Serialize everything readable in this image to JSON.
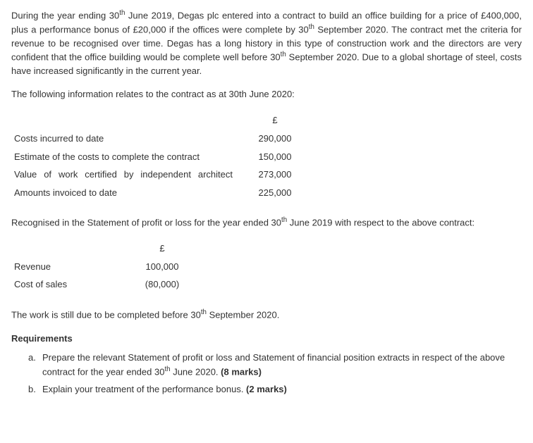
{
  "para1_pre": "During the year ending 30",
  "para1_sup1": "th",
  "para1_mid1": " June 2019, Degas plc entered into a contract to build an office building for a price of £400,000, plus a performance bonus of £20,000 if the offices were complete by 30",
  "para1_sup2": "th",
  "para1_mid2": " September 2020. The contract met the criteria for revenue to be recognised over time. Degas has a long history in this type of construction work and the directors are very confident that the office building would be complete well before 30",
  "para1_sup3": "th",
  "para1_end": " September 2020. Due to a global shortage of steel, costs have increased significantly in the current year.",
  "para2": "The following information relates to the contract as at 30th June 2020:",
  "table1": {
    "currency": "£",
    "rows": [
      {
        "label": "Costs incurred to date",
        "value": "290,000",
        "justify": false
      },
      {
        "label": "Estimate of the costs to complete the contract",
        "value": "150,000",
        "justify": false
      },
      {
        "label": "Value of work certified by independent architect",
        "value": "273,000",
        "justify": true
      },
      {
        "label": "Amounts invoiced to date",
        "value": "225,000",
        "justify": false
      }
    ]
  },
  "para3_pre": "Recognised in the Statement of profit or loss for the year ended 30",
  "para3_sup": "th",
  "para3_end": " June 2019 with respect to the above contract:",
  "table2": {
    "currency": "£",
    "rows": [
      {
        "label": "Revenue",
        "value": "100,000"
      },
      {
        "label": "Cost of sales",
        "value": "(80,000)"
      }
    ]
  },
  "para4_pre": "The work is still due to be completed before 30",
  "para4_sup": "th",
  "para4_end": " September 2020.",
  "reqs_heading": "Requirements",
  "reqs": [
    {
      "marker": "a.",
      "text_pre": "Prepare the relevant Statement of profit or loss and Statement of financial position extracts in respect of the above contract for the year ended 30",
      "text_sup": "th",
      "text_post": " June 2020. ",
      "marks": "(8 marks)"
    },
    {
      "marker": "b.",
      "text_pre": "Explain your treatment of the performance bonus.  ",
      "text_sup": "",
      "text_post": "",
      "marks": "(2 marks)"
    }
  ]
}
